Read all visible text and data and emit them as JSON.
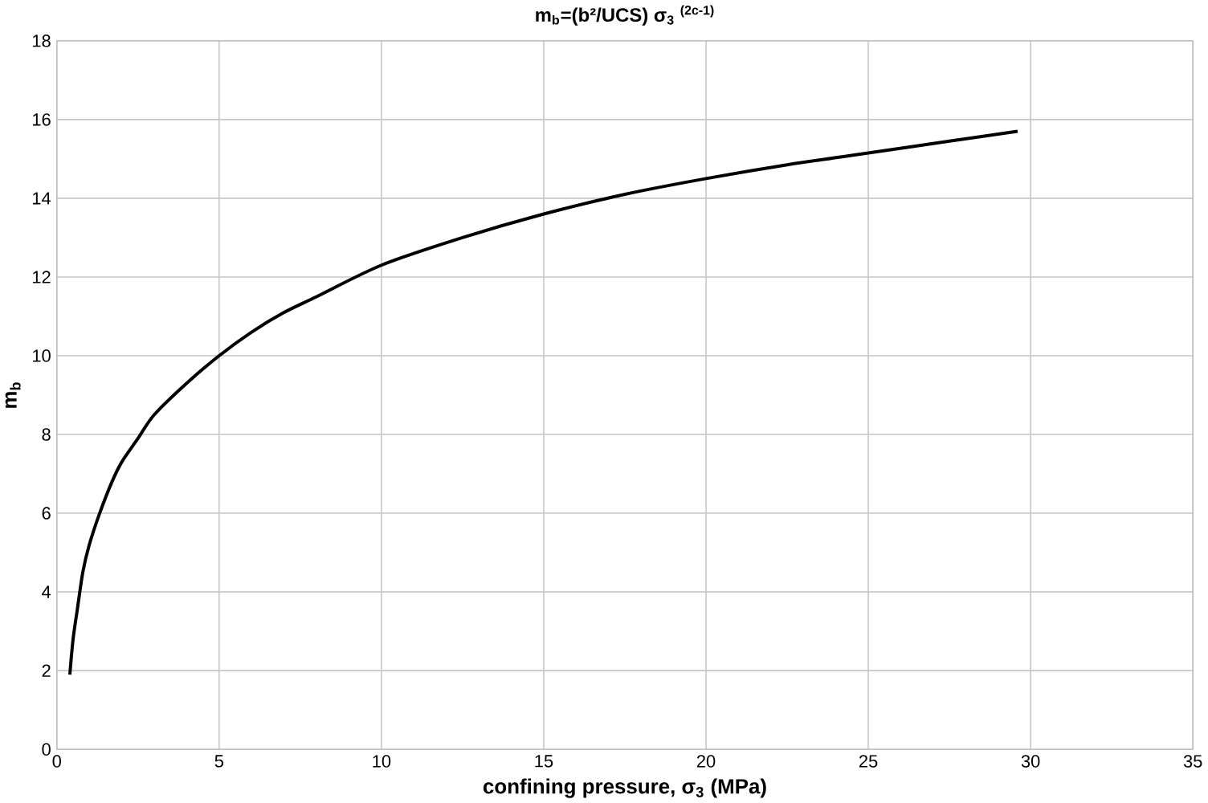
{
  "chart_data": {
    "type": "line",
    "title": "m$_{b}$=(b²/UCS) σ$_{3}$ $^{(2c-1)}$",
    "xlabel": "confining pressure, σ$_{3}$ (MPa)",
    "ylabel": "m$_{b}$",
    "series": [
      {
        "color": "#000000",
        "x": [
          0.4,
          0.5,
          0.63,
          0.8,
          1,
          1.32,
          1.7,
          2,
          2.5,
          3,
          4,
          5,
          6,
          7,
          8,
          10,
          12.5,
          15,
          17.5,
          20,
          22.5,
          25,
          27.5,
          29.6
        ],
        "values": [
          1.9,
          2.8,
          3.55,
          4.5,
          5.2,
          6.0,
          6.8,
          7.3,
          7.9,
          8.5,
          9.3,
          10.0,
          10.6,
          11.1,
          11.5,
          12.3,
          13.0,
          13.6,
          14.1,
          14.5,
          14.85,
          15.15,
          15.45,
          15.7
        ]
      }
    ],
    "xlim": [
      0,
      35
    ],
    "xticks": [
      0,
      5,
      10,
      15,
      20,
      25,
      30,
      35
    ],
    "ylim": [
      0,
      18
    ],
    "yticks": [
      0,
      2,
      4,
      6,
      8,
      10,
      12,
      14,
      16,
      18
    ],
    "grid": true,
    "marker": "none",
    "line_style": "solid"
  }
}
